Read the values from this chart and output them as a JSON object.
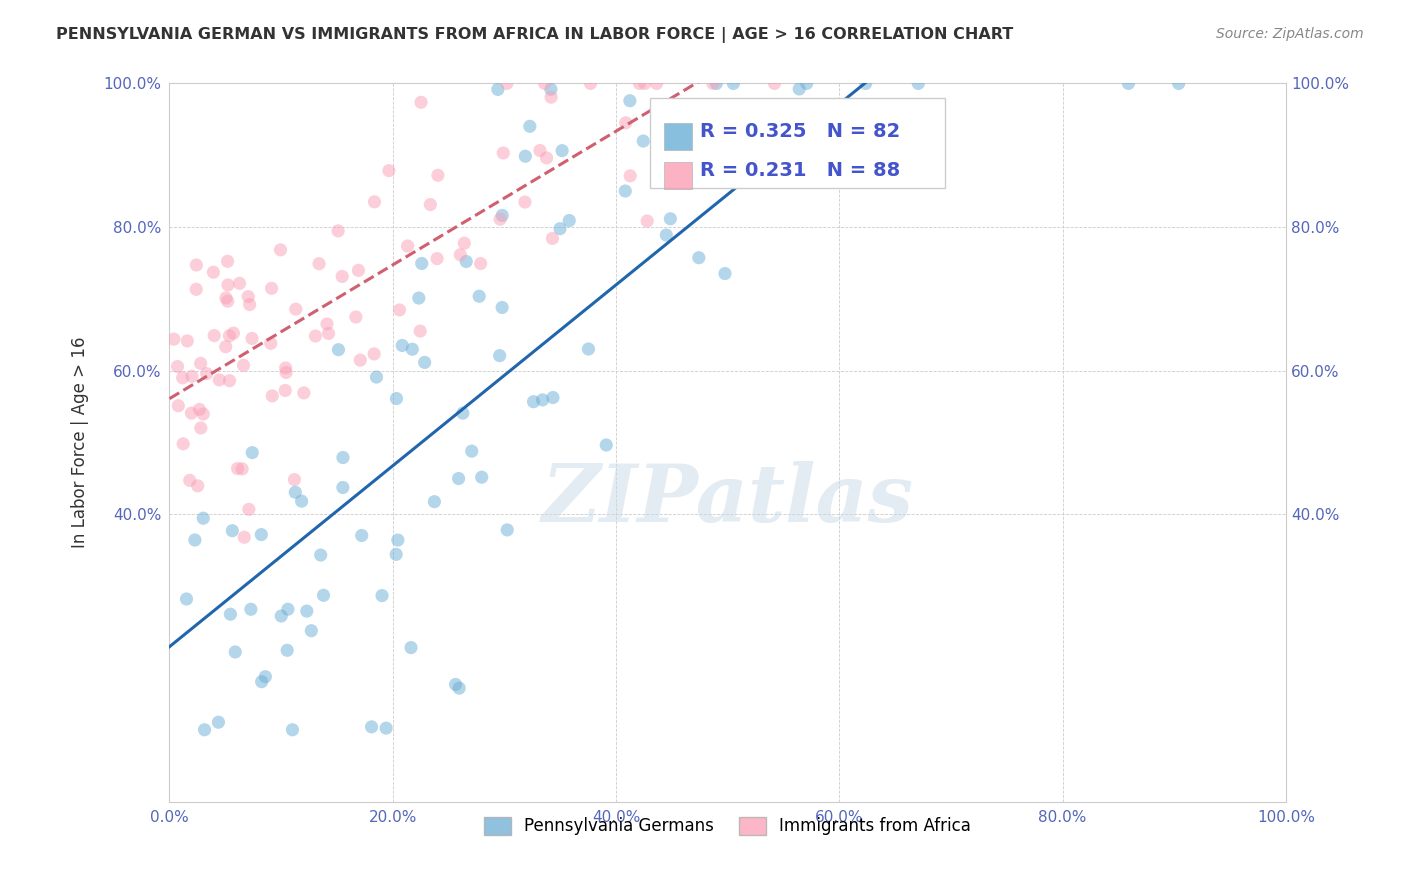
{
  "title": "PENNSYLVANIA GERMAN VS IMMIGRANTS FROM AFRICA IN LABOR FORCE | AGE > 16 CORRELATION CHART",
  "source": "Source: ZipAtlas.com",
  "ylabel": "In Labor Force | Age > 16",
  "xlim": [
    0.0,
    1.0
  ],
  "ylim": [
    0.0,
    1.0
  ],
  "xticks": [
    0.0,
    0.2,
    0.4,
    0.6,
    0.8,
    1.0
  ],
  "xtick_labels": [
    "0.0%",
    "20.0%",
    "40.0%",
    "60.0%",
    "80.0%",
    "100.0%"
  ],
  "yticks": [
    0.0,
    0.4,
    0.6,
    0.8,
    1.0
  ],
  "ytick_labels_left": [
    "",
    "40.0%",
    "60.0%",
    "80.0%",
    "100.0%"
  ],
  "ytick_labels_right": [
    "",
    "40.0%",
    "60.0%",
    "80.0%",
    "100.0%"
  ],
  "legend_labels": [
    "Pennsylvania Germans",
    "Immigrants from Africa"
  ],
  "blue_color": "#6baed6",
  "pink_color": "#fa9fb5",
  "blue_line_color": "#2166ac",
  "pink_line_color": "#d06070",
  "R_blue": 0.325,
  "N_blue": 82,
  "R_pink": 0.231,
  "N_pink": 88,
  "watermark": "ZIPatlas",
  "blue_scatter_seed": 42,
  "pink_scatter_seed": 99
}
